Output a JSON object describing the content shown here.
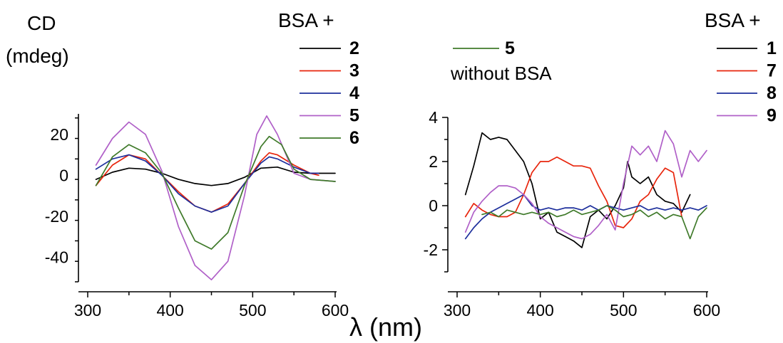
{
  "figure": {
    "ylabel_line1": "CD",
    "ylabel_line2": "(mdeg)",
    "xlabel": "λ (nm)"
  },
  "chart_data": [
    {
      "type": "line",
      "ylabel": "CD (mdeg)",
      "xlabel": "λ (nm)",
      "xlim": [
        300,
        600
      ],
      "ylim": [
        -52,
        30
      ],
      "x_ticks": [
        300,
        400,
        500,
        600
      ],
      "y_ticks": [
        -40,
        -20,
        0,
        20
      ],
      "grid": false,
      "legend_title": "BSA +",
      "legend_position": "top-right",
      "series": [
        {
          "name": "2",
          "color": "#000000",
          "x": [
            310,
            330,
            350,
            370,
            390,
            410,
            430,
            450,
            470,
            490,
            510,
            530,
            550,
            570,
            600
          ],
          "y": [
            -2,
            1.5,
            3.5,
            3,
            1,
            -2,
            -4,
            -5,
            -4,
            -1,
            3.5,
            4,
            1.5,
            1,
            1
          ]
        },
        {
          "name": "3",
          "color": "#e8250c",
          "x": [
            310,
            330,
            350,
            370,
            390,
            410,
            430,
            450,
            470,
            490,
            510,
            520,
            530,
            550,
            570,
            580
          ],
          "y": [
            -5,
            5,
            10,
            8,
            0,
            -8,
            -15,
            -18,
            -14,
            -4,
            7,
            11,
            10,
            5,
            1,
            0
          ]
        },
        {
          "name": "4",
          "color": "#1d2f9c",
          "x": [
            310,
            330,
            350,
            370,
            390,
            410,
            430,
            450,
            470,
            490,
            510,
            520,
            530,
            550,
            570,
            580
          ],
          "y": [
            3,
            8,
            10,
            7,
            0,
            -9,
            -15,
            -18,
            -15,
            -4,
            6,
            9,
            8,
            4,
            1,
            1
          ]
        },
        {
          "name": "5",
          "color": "#b060c8",
          "x": [
            310,
            330,
            350,
            370,
            390,
            410,
            430,
            450,
            470,
            490,
            505,
            517,
            530,
            550,
            570,
            600
          ],
          "y": [
            5,
            18,
            26,
            20,
            2,
            -25,
            -44,
            -51,
            -42,
            -10,
            20,
            29,
            20,
            1,
            -2,
            -3
          ]
        },
        {
          "name": "6",
          "color": "#3f7a2a",
          "x": [
            310,
            330,
            350,
            370,
            390,
            410,
            430,
            450,
            470,
            490,
            510,
            520,
            535,
            550,
            570,
            600
          ],
          "y": [
            -5,
            9,
            15,
            11,
            1,
            -16,
            -32,
            -36,
            -28,
            -5,
            14,
            19,
            15,
            3,
            -2,
            -3
          ]
        }
      ]
    },
    {
      "type": "line",
      "xlim": [
        300,
        600
      ],
      "ylim": [
        -3,
        4
      ],
      "x_ticks": [
        300,
        400,
        500,
        600
      ],
      "y_ticks": [
        -2,
        0,
        2,
        4
      ],
      "grid": false,
      "legend_title": "BSA +",
      "legend_position": "top-right",
      "extra_legend": {
        "name": "5",
        "note": "without BSA",
        "color": "#3f7a2a",
        "position": "top-center"
      },
      "series": [
        {
          "name": "1",
          "color": "#000000",
          "x": [
            310,
            320,
            330,
            340,
            350,
            360,
            370,
            380,
            390,
            400,
            410,
            420,
            430,
            440,
            450,
            460,
            470,
            480,
            490,
            500,
            505,
            510,
            520,
            530,
            540,
            550,
            560,
            570,
            580
          ],
          "y": [
            0.5,
            1.8,
            3.3,
            3,
            3.1,
            3,
            2.5,
            2,
            1,
            -0.6,
            -0.3,
            -1.2,
            -1.4,
            -1.6,
            -1.9,
            -0.5,
            -0.2,
            -0.6,
            0,
            0.8,
            2.0,
            1.3,
            1,
            1.3,
            0.5,
            0.2,
            0.1,
            -0.3,
            0.5
          ]
        },
        {
          "name": "7",
          "color": "#e8250c",
          "x": [
            310,
            320,
            330,
            340,
            350,
            360,
            370,
            380,
            390,
            400,
            410,
            420,
            430,
            440,
            450,
            460,
            470,
            480,
            490,
            500,
            510,
            520,
            530,
            540,
            550,
            560,
            570
          ],
          "y": [
            -0.5,
            0.1,
            -0.2,
            -0.4,
            -0.5,
            -0.5,
            -0.3,
            0.5,
            1.5,
            2,
            2,
            2.2,
            2,
            1.8,
            1.8,
            1.7,
            0.9,
            0.2,
            -0.9,
            -1.0,
            -0.6,
            0.2,
            0.5,
            1.2,
            1.7,
            1.5,
            -0.5
          ]
        },
        {
          "name": "8",
          "color": "#1d2f9c",
          "x": [
            310,
            320,
            330,
            340,
            350,
            360,
            370,
            380,
            390,
            400,
            410,
            420,
            430,
            440,
            450,
            460,
            470,
            480,
            490,
            500,
            510,
            520,
            530,
            540,
            550,
            560,
            570,
            580,
            590,
            600
          ],
          "y": [
            -1.5,
            -1.0,
            -0.6,
            -0.3,
            -0.1,
            0.1,
            0.3,
            0.5,
            0,
            -0.2,
            -0.1,
            -0.2,
            -0.1,
            -0.1,
            -0.2,
            0,
            -0.2,
            0,
            -0.1,
            -0.2,
            -0.1,
            0,
            -0.2,
            -0.1,
            -0.2,
            -0.1,
            -0.2,
            -0.1,
            -0.2,
            0
          ]
        },
        {
          "name": "9",
          "color": "#b060c8",
          "x": [
            310,
            320,
            330,
            340,
            350,
            360,
            370,
            380,
            390,
            400,
            410,
            420,
            430,
            440,
            450,
            460,
            470,
            480,
            490,
            500,
            510,
            520,
            530,
            540,
            550,
            560,
            570,
            580,
            590,
            600
          ],
          "y": [
            -1.2,
            -0.3,
            0.2,
            0.6,
            0.9,
            0.9,
            0.8,
            0.5,
            0.1,
            -0.5,
            -0.8,
            -1,
            -1.2,
            -1.4,
            -1.5,
            -1.3,
            -0.9,
            -0.4,
            -1.1,
            1.0,
            2.7,
            2.3,
            2.7,
            2.0,
            3.4,
            2.8,
            1.3,
            2.5,
            2.0,
            2.5
          ]
        },
        {
          "name": "5",
          "color": "#3f7a2a",
          "x": [
            330,
            340,
            350,
            360,
            370,
            380,
            390,
            400,
            410,
            420,
            430,
            440,
            450,
            460,
            470,
            480,
            490,
            500,
            510,
            520,
            530,
            540,
            550,
            560,
            570,
            580,
            590,
            600
          ],
          "y": [
            -0.4,
            -0.3,
            -0.5,
            -0.2,
            -0.3,
            -0.4,
            -0.3,
            -0.4,
            -0.3,
            -0.5,
            -0.4,
            -0.2,
            -0.4,
            -0.3,
            -0.2,
            0,
            -0.2,
            -0.5,
            -0.4,
            -0.2,
            -0.5,
            -0.3,
            -0.6,
            -0.4,
            -0.5,
            -1.5,
            -0.5,
            -0.1
          ]
        }
      ]
    }
  ]
}
